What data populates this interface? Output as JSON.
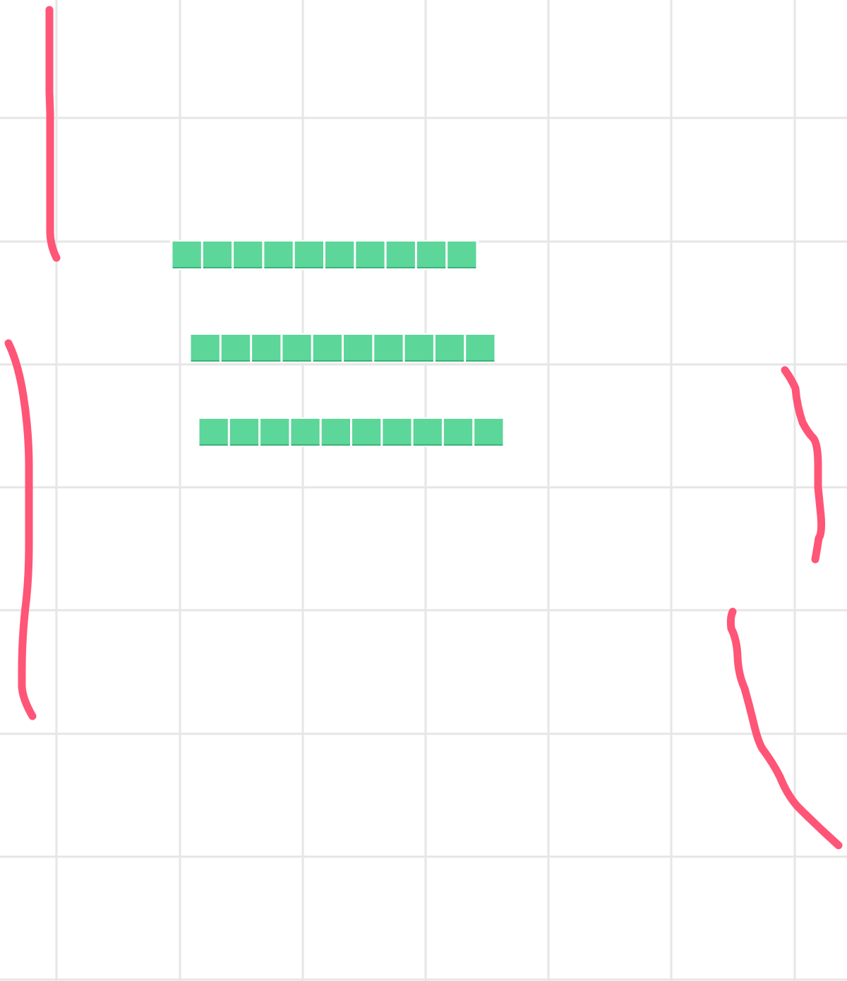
{
  "colors": {
    "background": "#ffffff",
    "grid": "#e6e6e6",
    "stroke": "#ff5577",
    "block": "#5cd699",
    "block_edge": "#3bb27a"
  },
  "grid": {
    "visible": true
  },
  "block_rows": [
    {
      "cell_count": 10
    },
    {
      "cell_count": 10
    },
    {
      "cell_count": 10
    }
  ],
  "strokes": [
    {
      "name": "top-left-vertical-stroke"
    },
    {
      "name": "left-long-curved-stroke"
    },
    {
      "name": "right-wavy-stroke"
    },
    {
      "name": "bottom-right-curved-stroke"
    }
  ]
}
